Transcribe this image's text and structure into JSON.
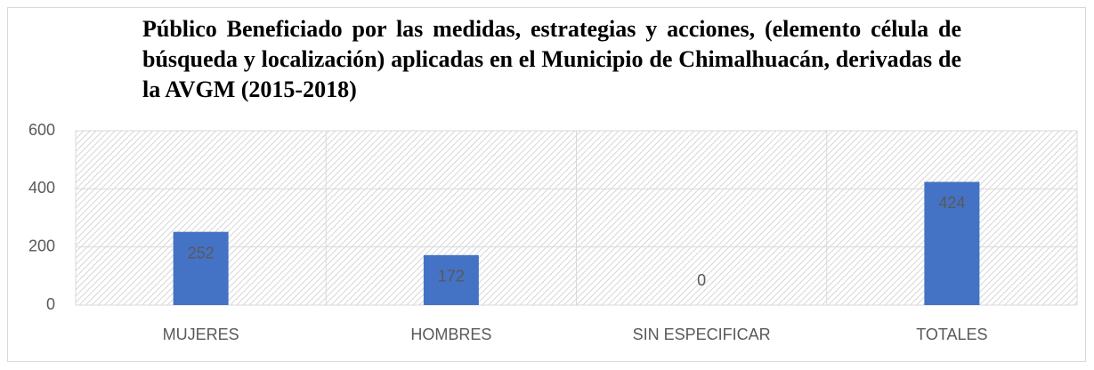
{
  "chart_data": {
    "type": "bar",
    "title": "Público Beneficiado por las medidas, estrategias y acciones, (elemento célula de búsqueda y localización) aplicadas en el Municipio de Chimalhuacán, derivadas de la AVGM (2015-2018)",
    "categories": [
      "MUJERES",
      "HOMBRES",
      "SIN ESPECIFICAR",
      "TOTALES"
    ],
    "values": [
      252,
      172,
      0,
      424
    ],
    "color": "#4472c4",
    "ylim": [
      0,
      600
    ],
    "yticks": [
      0,
      200,
      400,
      600
    ],
    "grid": true
  }
}
